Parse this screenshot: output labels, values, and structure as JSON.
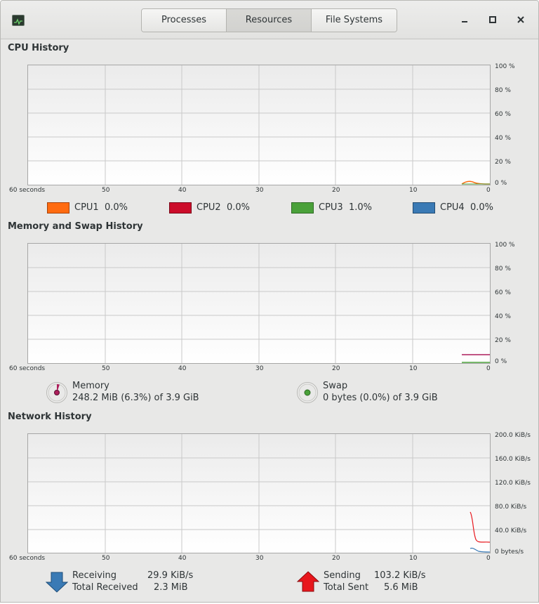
{
  "window": {
    "tabs": [
      "Processes",
      "Resources",
      "File Systems"
    ],
    "active_tab": 1,
    "controls": {
      "minimize": "minimize-icon",
      "maximize": "maximize-icon",
      "close": "close-icon"
    }
  },
  "x_axis_labels": [
    "60 seconds",
    "50",
    "40",
    "30",
    "20",
    "10",
    "0"
  ],
  "cpu": {
    "title": "CPU History",
    "y_labels": [
      "100 %",
      "80 %",
      "60 %",
      "40 %",
      "20 %",
      "0 %"
    ],
    "legend": [
      {
        "label": "CPU1",
        "value": "0.0%",
        "color": "#ff6b10"
      },
      {
        "label": "CPU2",
        "value": "0.0%",
        "color": "#cc0c2a"
      },
      {
        "label": "CPU3",
        "value": "1.0%",
        "color": "#4aa13a"
      },
      {
        "label": "CPU4",
        "value": "0.0%",
        "color": "#3a7ab5"
      }
    ]
  },
  "memory": {
    "title": "Memory and Swap History",
    "y_labels": [
      "100 %",
      "80 %",
      "60 %",
      "40 %",
      "20 %",
      "0 %"
    ],
    "memory_label": "Memory",
    "memory_value": "248.2 MiB (6.3%) of 3.9 GiB",
    "swap_label": "Swap",
    "swap_value": "0 bytes (0.0%) of 3.9 GiB",
    "memory_color": "#ad1f5c",
    "swap_color": "#4aa13a"
  },
  "network": {
    "title": "Network History",
    "y_labels": [
      "200.0 KiB/s",
      "160.0 KiB/s",
      "120.0 KiB/s",
      "80.0 KiB/s",
      "40.0 KiB/s",
      "0 bytes/s"
    ],
    "receiving_label": "Receiving",
    "receiving_value": "29.9 KiB/s",
    "total_received_label": "Total Received",
    "total_received_value": "2.3 MiB",
    "sending_label": "Sending",
    "sending_value": "103.2 KiB/s",
    "total_sent_label": "Total Sent",
    "total_sent_value": "5.6 MiB",
    "receive_color": "#3a7ab5",
    "send_color": "#e8161c"
  }
}
